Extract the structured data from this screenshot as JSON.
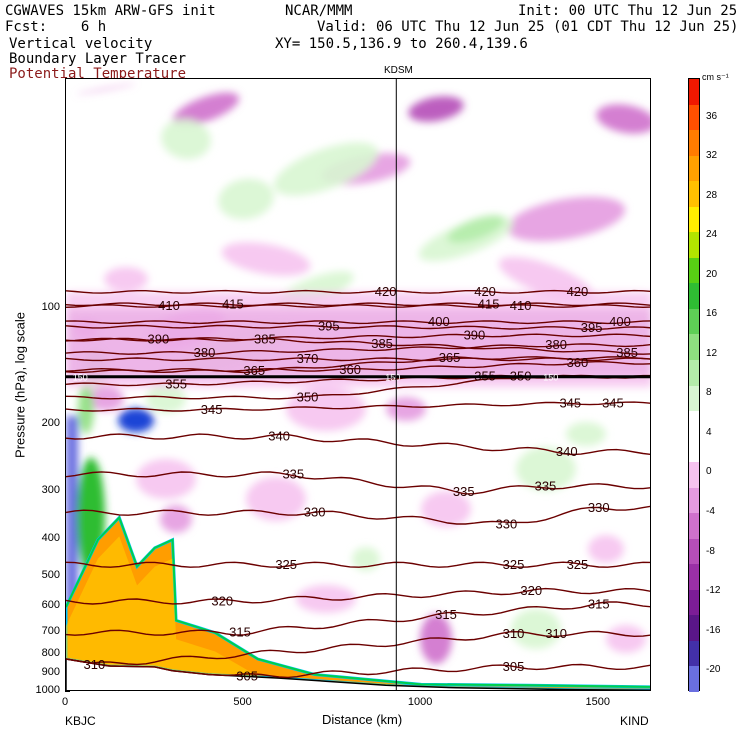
{
  "header": {
    "model": "CGWAVES 15km ARW-GFS init",
    "forecast": "Fcst:    6 h",
    "org": "NCAR/MMM",
    "init": "Init: 00 UTC Thu 12 Jun 25",
    "valid": "Valid: 06 UTC Thu 12 Jun 25 (01 CDT Thu 12 Jun 25)",
    "xy": "XY= 150.5,136.9 to 260.4,139.6",
    "field1": "Vertical velocity",
    "field2": "Boundary Layer Tracer",
    "field3": "Potential Temperature"
  },
  "colors": {
    "theta_contour": "#6b0000",
    "upward": [
      "#f6c3ef",
      "#e49be0",
      "#cf71cc",
      "#b54eb8",
      "#9a30a6",
      "#7c1d97",
      "#5a1688",
      "#4330a8",
      "#6a6fe0"
    ],
    "downward": [
      "#d8f6d2",
      "#b4ecaa",
      "#8edf80",
      "#5ecf56",
      "#2fbd33",
      "#58d014",
      "#b2e400",
      "#ffee00",
      "#ffc000",
      "#ffa000",
      "#ff7c00",
      "#ff5000",
      "#f01800"
    ],
    "pbl": [
      "#ff9d00",
      "#ffd100",
      "#00c2ff",
      "#00d04a"
    ]
  },
  "chart_data": {
    "type": "contour cross-section",
    "top_label": "KDSM",
    "xlabel": "Distance (km)",
    "ylabel": "Pressure (hPa), log scale",
    "xlim": [
      0,
      1650
    ],
    "ylim": [
      1000,
      25
    ],
    "x_ticks": [
      "0",
      "500",
      "1000",
      "1500"
    ],
    "y_ticks": [
      "100",
      "200",
      "300",
      "400",
      "500",
      "600",
      "700",
      "800",
      "900",
      "1000"
    ],
    "left_endpoint": "KBJC",
    "right_endpoint": "KIND",
    "kdsm_distance_km": 930,
    "colorbar": {
      "unit": "cm s⁻¹",
      "ticks": [
        "36",
        "32",
        "28",
        "24",
        "20",
        "16",
        "12",
        "8",
        "4",
        "0",
        "-4",
        "-8",
        "-12",
        "-16",
        "-20"
      ]
    },
    "theta_contours": [
      {
        "level": 420,
        "labels": [
          [
            900,
            90
          ],
          [
            1180,
            90
          ],
          [
            1440,
            90
          ]
        ]
      },
      {
        "level": 415,
        "labels": [
          [
            470,
            97
          ],
          [
            1190,
            97
          ]
        ]
      },
      {
        "level": 410,
        "labels": [
          [
            290,
            98
          ],
          [
            1280,
            98
          ]
        ]
      },
      {
        "level": 400,
        "labels": [
          [
            1050,
            108
          ],
          [
            1560,
            108
          ]
        ]
      },
      {
        "level": 395,
        "labels": [
          [
            740,
            111
          ],
          [
            1480,
            112
          ]
        ]
      },
      {
        "level": 390,
        "labels": [
          [
            260,
            120
          ],
          [
            1150,
            117
          ]
        ]
      },
      {
        "level": 385,
        "labels": [
          [
            560,
            120
          ],
          [
            890,
            123
          ],
          [
            1580,
            130
          ]
        ]
      },
      {
        "level": 380,
        "labels": [
          [
            390,
            130
          ],
          [
            1380,
            124
          ]
        ]
      },
      {
        "level": 370,
        "labels": [
          [
            680,
            135
          ]
        ]
      },
      {
        "level": 365,
        "labels": [
          [
            530,
            145
          ],
          [
            1080,
            134
          ]
        ]
      },
      {
        "level": 360,
        "labels": [
          [
            800,
            144
          ],
          [
            1440,
            138
          ]
        ]
      },
      {
        "level": 355,
        "labels": [
          [
            310,
            157
          ],
          [
            1180,
            150
          ]
        ]
      },
      {
        "level": 350,
        "labels": [
          [
            680,
            170
          ],
          [
            1280,
            150
          ]
        ]
      },
      {
        "level": 345,
        "labels": [
          [
            410,
            183
          ],
          [
            1420,
            176
          ],
          [
            1540,
            176
          ]
        ]
      },
      {
        "level": 340,
        "labels": [
          [
            600,
            215
          ],
          [
            1410,
            236
          ]
        ]
      },
      {
        "level": 335,
        "labels": [
          [
            640,
            270
          ],
          [
            1120,
            300
          ],
          [
            1350,
            290
          ]
        ]
      },
      {
        "level": 330,
        "labels": [
          [
            700,
            340
          ],
          [
            1240,
            365
          ],
          [
            1500,
            330
          ]
        ]
      },
      {
        "level": 325,
        "labels": [
          [
            620,
            465
          ],
          [
            1260,
            465
          ],
          [
            1440,
            465
          ]
        ]
      },
      {
        "level": 320,
        "labels": [
          [
            440,
            580
          ],
          [
            1310,
            545
          ]
        ]
      },
      {
        "level": 315,
        "labels": [
          [
            490,
            700
          ],
          [
            1070,
            630
          ],
          [
            1500,
            590
          ]
        ]
      },
      {
        "level": 310,
        "labels": [
          [
            80,
            850
          ],
          [
            1260,
            705
          ],
          [
            1380,
            705
          ]
        ]
      },
      {
        "level": 305,
        "labels": [
          [
            510,
            910
          ],
          [
            1260,
            860
          ]
        ]
      }
    ],
    "tropopause_labels": [
      {
        "text": "150",
        "x": 40
      },
      {
        "text": "150",
        "x": 920
      },
      {
        "text": "150",
        "x": 1365
      }
    ],
    "pbl_top_profile": [
      [
        0,
        600
      ],
      [
        90,
        400
      ],
      [
        150,
        350
      ],
      [
        200,
        470
      ],
      [
        250,
        420
      ],
      [
        300,
        400
      ],
      [
        310,
        650
      ],
      [
        420,
        700
      ],
      [
        540,
        820
      ],
      [
        700,
        900
      ],
      [
        1000,
        955
      ],
      [
        1300,
        960
      ],
      [
        1650,
        970
      ]
    ],
    "terrain_profile": [
      [
        0,
        820
      ],
      [
        120,
        855
      ],
      [
        250,
        860
      ],
      [
        300,
        880
      ],
      [
        400,
        900
      ],
      [
        600,
        920
      ],
      [
        900,
        960
      ],
      [
        1100,
        975
      ],
      [
        1400,
        985
      ],
      [
        1650,
        990
      ]
    ]
  }
}
